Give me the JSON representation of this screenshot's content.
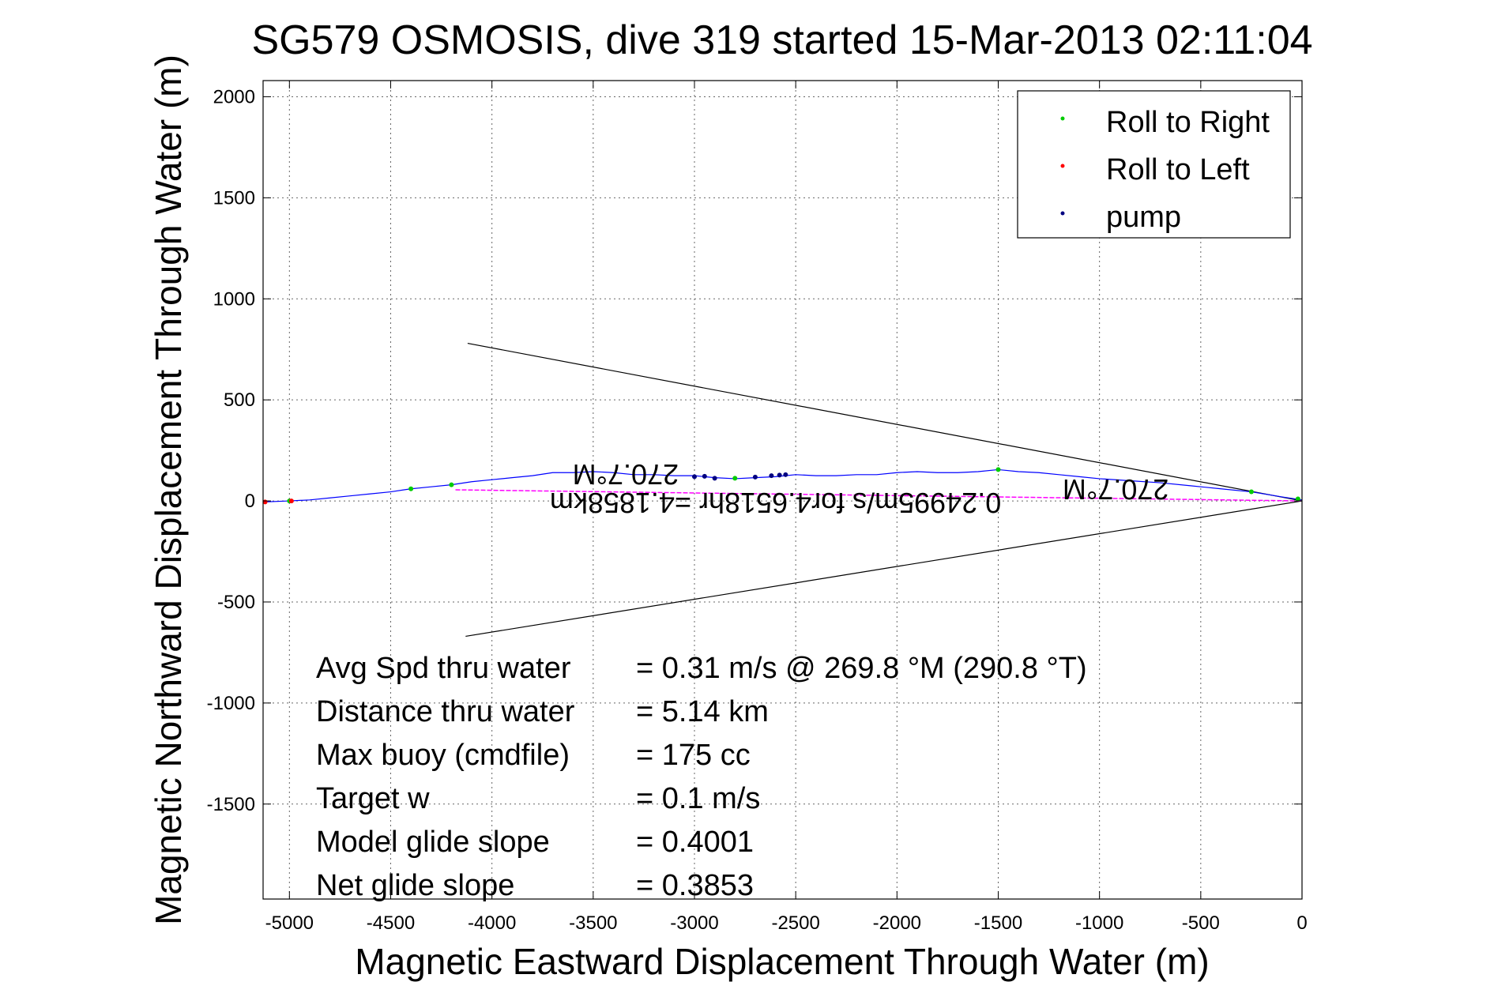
{
  "chart_data": {
    "type": "scatter",
    "title": "SG579 OSMOSIS, dive 319 started 15-Mar-2013 02:11:04",
    "xlabel": "Magnetic Eastward Displacement Through Water (m)",
    "ylabel": "Magnetic Northward Displacement Through Water (m)",
    "xlim": [
      -5130,
      0
    ],
    "ylim": [
      -1970,
      2080
    ],
    "xticks": [
      -5000,
      -4500,
      -4000,
      -3500,
      -3000,
      -2500,
      -2000,
      -1500,
      -1000,
      -500,
      0
    ],
    "yticks": [
      -1500,
      -1000,
      -500,
      0,
      500,
      1000,
      1500,
      2000
    ],
    "grid": true,
    "legend_position": "top-right",
    "legend": [
      {
        "label": "Roll to Right",
        "color": "#00cc00"
      },
      {
        "label": "Roll to Left",
        "color": "#ff0000"
      },
      {
        "label": "pump",
        "color": "#000080"
      }
    ],
    "track": {
      "color": "#0000ff",
      "points": [
        [
          0,
          5
        ],
        [
          -100,
          20
        ],
        [
          -250,
          45
        ],
        [
          -400,
          60
        ],
        [
          -550,
          75
        ],
        [
          -700,
          90
        ],
        [
          -850,
          100
        ],
        [
          -1000,
          110
        ],
        [
          -1100,
          120
        ],
        [
          -1200,
          130
        ],
        [
          -1300,
          140
        ],
        [
          -1400,
          145
        ],
        [
          -1500,
          155
        ],
        [
          -1600,
          145
        ],
        [
          -1700,
          140
        ],
        [
          -1800,
          140
        ],
        [
          -1900,
          145
        ],
        [
          -2000,
          140
        ],
        [
          -2100,
          130
        ],
        [
          -2200,
          130
        ],
        [
          -2300,
          125
        ],
        [
          -2400,
          125
        ],
        [
          -2500,
          130
        ],
        [
          -2600,
          120
        ],
        [
          -2700,
          115
        ],
        [
          -2800,
          110
        ],
        [
          -2900,
          115
        ],
        [
          -3000,
          125
        ],
        [
          -3100,
          125
        ],
        [
          -3200,
          130
        ],
        [
          -3300,
          130
        ],
        [
          -3400,
          140
        ],
        [
          -3500,
          145
        ],
        [
          -3600,
          140
        ],
        [
          -3700,
          140
        ],
        [
          -3800,
          125
        ],
        [
          -3900,
          115
        ],
        [
          -4000,
          105
        ],
        [
          -4100,
          95
        ],
        [
          -4200,
          80
        ],
        [
          -4300,
          70
        ],
        [
          -4400,
          60
        ],
        [
          -4500,
          45
        ],
        [
          -4600,
          35
        ],
        [
          -4700,
          25
        ],
        [
          -4800,
          15
        ],
        [
          -4900,
          5
        ],
        [
          -5000,
          0
        ],
        [
          -5130,
          -5
        ]
      ]
    },
    "current_line": {
      "color": "#ff00ff",
      "x": [
        -4180,
        0
      ],
      "y": [
        55,
        0
      ]
    },
    "roll_right_points": [
      [
        -20,
        10
      ],
      [
        -250,
        45
      ],
      [
        -1500,
        155
      ],
      [
        -2800,
        112
      ],
      [
        -4200,
        80
      ],
      [
        -4400,
        60
      ],
      [
        -5000,
        0
      ]
    ],
    "roll_left_points": [
      [
        -5120,
        -5
      ],
      [
        -4990,
        0
      ]
    ],
    "pump_points": [
      [
        -2620,
        125
      ],
      [
        -2580,
        128
      ],
      [
        -2550,
        130
      ],
      [
        -2700,
        118
      ],
      [
        -2900,
        112
      ],
      [
        -3000,
        120
      ],
      [
        -2950,
        122
      ]
    ],
    "wedge": {
      "color": "#000000",
      "upper": {
        "x": [
          -4120,
          0
        ],
        "y": [
          780,
          0
        ]
      },
      "lower": {
        "x": [
          -4130,
          0
        ],
        "y": [
          -670,
          0
        ]
      }
    },
    "rotated_labels": [
      {
        "text": "270.7°M",
        "x": -3340,
        "y": 180
      },
      {
        "text": "270.7°M",
        "x": -920,
        "y": 105
      },
      {
        "text": "0.24995m/s for4.6518hr =4.1858km",
        "x": -2600,
        "y": 40
      }
    ],
    "annotations": [
      {
        "label": "Avg Spd thru water",
        "value": "=  0.31 m/s @ 269.8 °M (290.8 °T)"
      },
      {
        "label": "Distance thru water",
        "value": "=  5.14 km"
      },
      {
        "label": "Max buoy (cmdfile)",
        "value": "= 175 cc"
      },
      {
        "label": "Target w",
        "value": "= 0.1 m/s"
      },
      {
        "label": "Model glide slope",
        "value": "= 0.4001"
      },
      {
        "label": "Net glide slope",
        "value": "= 0.3853"
      }
    ]
  }
}
